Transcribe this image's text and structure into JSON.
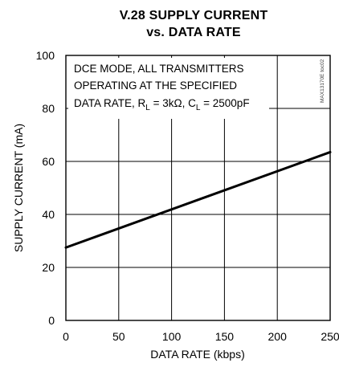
{
  "chart_data": {
    "type": "line",
    "title_line1": "V.28 SUPPLY CURRENT",
    "title_line2": "vs. DATA RATE",
    "xlabel": "DATA RATE (kbps)",
    "ylabel": "SUPPLY CURRENT (mA)",
    "xlim": [
      0,
      250
    ],
    "ylim": [
      0,
      100
    ],
    "xticks": [
      0,
      50,
      100,
      150,
      200,
      250
    ],
    "yticks": [
      0,
      20,
      40,
      60,
      80,
      100
    ],
    "grid": true,
    "series": [
      {
        "x": [
          0,
          250
        ],
        "y": [
          27.5,
          63.5
        ]
      }
    ],
    "annotation": {
      "line1": "DCE MODE, ALL TRANSMITTERS",
      "line2": "OPERATING AT THE SPECIFIED",
      "line3_prefix": "DATA RATE, R",
      "rl_sub": "L",
      "rl_value": " = 3kΩ, C",
      "cl_sub": "L",
      "cl_value": " = 2500pF"
    },
    "side_id": "MAX13170E toc02"
  }
}
